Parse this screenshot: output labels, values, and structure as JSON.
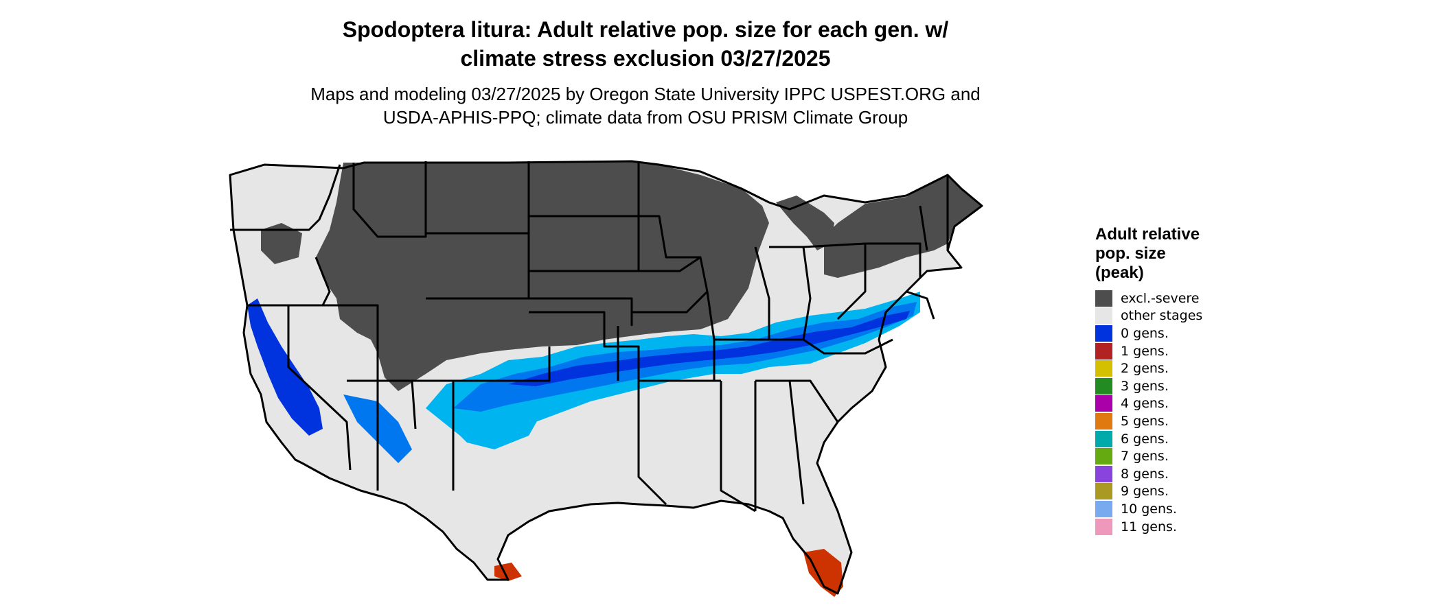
{
  "header": {
    "title_line1": "Spodoptera litura: Adult relative pop. size for each gen. w/",
    "title_line2": "climate stress exclusion 03/27/2025",
    "subtitle_line1": "Maps and modeling 03/27/2025 by Oregon State University IPPC USPEST.ORG and",
    "subtitle_line2": "USDA-APHIS-PPQ; climate data from OSU PRISM Climate Group"
  },
  "legend": {
    "title_line1": "Adult relative",
    "title_line2": "pop. size",
    "title_line3": "(peak)",
    "items": [
      {
        "label": "excl.-severe",
        "color": "#4d4d4d"
      },
      {
        "label": "other stages",
        "color": "#e6e6e6"
      },
      {
        "label": "0 gens.",
        "color": "#0033dd"
      },
      {
        "label": "1 gens.",
        "color": "#b22222"
      },
      {
        "label": "2 gens.",
        "color": "#d4c000"
      },
      {
        "label": "3 gens.",
        "color": "#228b22"
      },
      {
        "label": "4 gens.",
        "color": "#aa00aa"
      },
      {
        "label": "5 gens.",
        "color": "#e07a10"
      },
      {
        "label": "6 gens.",
        "color": "#00aaaa"
      },
      {
        "label": "7 gens.",
        "color": "#66aa11"
      },
      {
        "label": "8 gens.",
        "color": "#8844dd"
      },
      {
        "label": "9 gens.",
        "color": "#aa9922"
      },
      {
        "label": "10 gens.",
        "color": "#77aaee"
      },
      {
        "label": "11 gens.",
        "color": "#ee99bb"
      }
    ]
  },
  "map": {
    "colors": {
      "excluded": "#4d4d4d",
      "other": "#e6e6e6",
      "blue_dark": "#0033dd",
      "blue_mid": "#0077ee",
      "blue_light": "#00b4f0",
      "red": "#cc3300",
      "orange": "#e06020"
    }
  }
}
